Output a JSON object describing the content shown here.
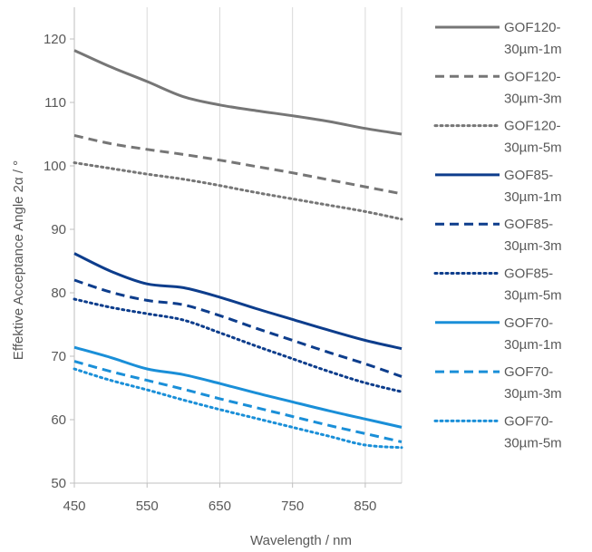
{
  "chart_data": {
    "type": "line",
    "xlabel": "Wavelength / nm",
    "ylabel": "Effektive Acceptance Angle 2α / °",
    "xlim": [
      450,
      900
    ],
    "ylim": [
      50,
      125
    ],
    "xticks": [
      "450",
      "550",
      "650",
      "750",
      "850"
    ],
    "yticks": [
      "50",
      "60",
      "70",
      "80",
      "90",
      "100",
      "110",
      "120"
    ],
    "grid": "vertical",
    "legend_position": "right",
    "x": [
      450,
      500,
      550,
      600,
      650,
      700,
      750,
      800,
      850,
      900
    ],
    "series": [
      {
        "name": "GOF120-30µm-1m",
        "color": "#767676",
        "dash": "solid",
        "values": [
          118.2,
          115.6,
          113.3,
          110.9,
          109.6,
          108.7,
          107.9,
          107.0,
          105.9,
          105.0
        ]
      },
      {
        "name": "GOF120-30µm-3m",
        "color": "#767676",
        "dash": "dashed",
        "values": [
          104.8,
          103.5,
          102.6,
          101.8,
          100.9,
          99.9,
          98.9,
          97.8,
          96.7,
          95.6
        ]
      },
      {
        "name": "GOF120-30µm-5m",
        "color": "#767676",
        "dash": "dotted",
        "values": [
          100.5,
          99.6,
          98.7,
          97.9,
          96.9,
          95.8,
          94.8,
          93.8,
          92.8,
          91.6
        ]
      },
      {
        "name": "GOF85-30µm-1m",
        "color": "#0d3d8c",
        "dash": "solid",
        "values": [
          86.2,
          83.4,
          81.4,
          80.8,
          79.3,
          77.5,
          75.8,
          74.1,
          72.5,
          71.2
        ]
      },
      {
        "name": "GOF85-30µm-3m",
        "color": "#0d3d8c",
        "dash": "dashed",
        "values": [
          82.0,
          80.1,
          78.8,
          78.1,
          76.4,
          74.4,
          72.5,
          70.6,
          68.8,
          66.8
        ]
      },
      {
        "name": "GOF85-30µm-5m",
        "color": "#0d3d8c",
        "dash": "dotted",
        "values": [
          79.0,
          77.7,
          76.7,
          75.7,
          73.7,
          71.6,
          69.6,
          67.6,
          65.8,
          64.4
        ]
      },
      {
        "name": "GOF70-30µm-1m",
        "color": "#1a8fd8",
        "dash": "solid",
        "values": [
          71.4,
          69.8,
          68.0,
          67.1,
          65.7,
          64.2,
          62.8,
          61.4,
          60.1,
          58.8
        ]
      },
      {
        "name": "GOF70-30µm-3m",
        "color": "#1a8fd8",
        "dash": "dashed",
        "values": [
          69.2,
          67.6,
          66.2,
          64.8,
          63.3,
          61.9,
          60.5,
          59.1,
          57.8,
          56.5
        ]
      },
      {
        "name": "GOF70-30µm-5m",
        "color": "#1a8fd8",
        "dash": "dotted",
        "values": [
          68.0,
          66.2,
          64.7,
          63.1,
          61.6,
          60.2,
          58.8,
          57.4,
          56.0,
          55.6
        ]
      }
    ],
    "legend_entries": [
      [
        "GOF120-",
        "30µm-1m"
      ],
      [
        "GOF120-",
        "30µm-3m"
      ],
      [
        "GOF120-",
        "30µm-5m"
      ],
      [
        "GOF85-",
        "30µm-1m"
      ],
      [
        "GOF85-",
        "30µm-3m"
      ],
      [
        "GOF85-",
        "30µm-5m"
      ],
      [
        "GOF70-",
        "30µm-1m"
      ],
      [
        "GOF70-",
        "30µm-3m"
      ],
      [
        "GOF70-",
        "30µm-5m"
      ]
    ]
  }
}
